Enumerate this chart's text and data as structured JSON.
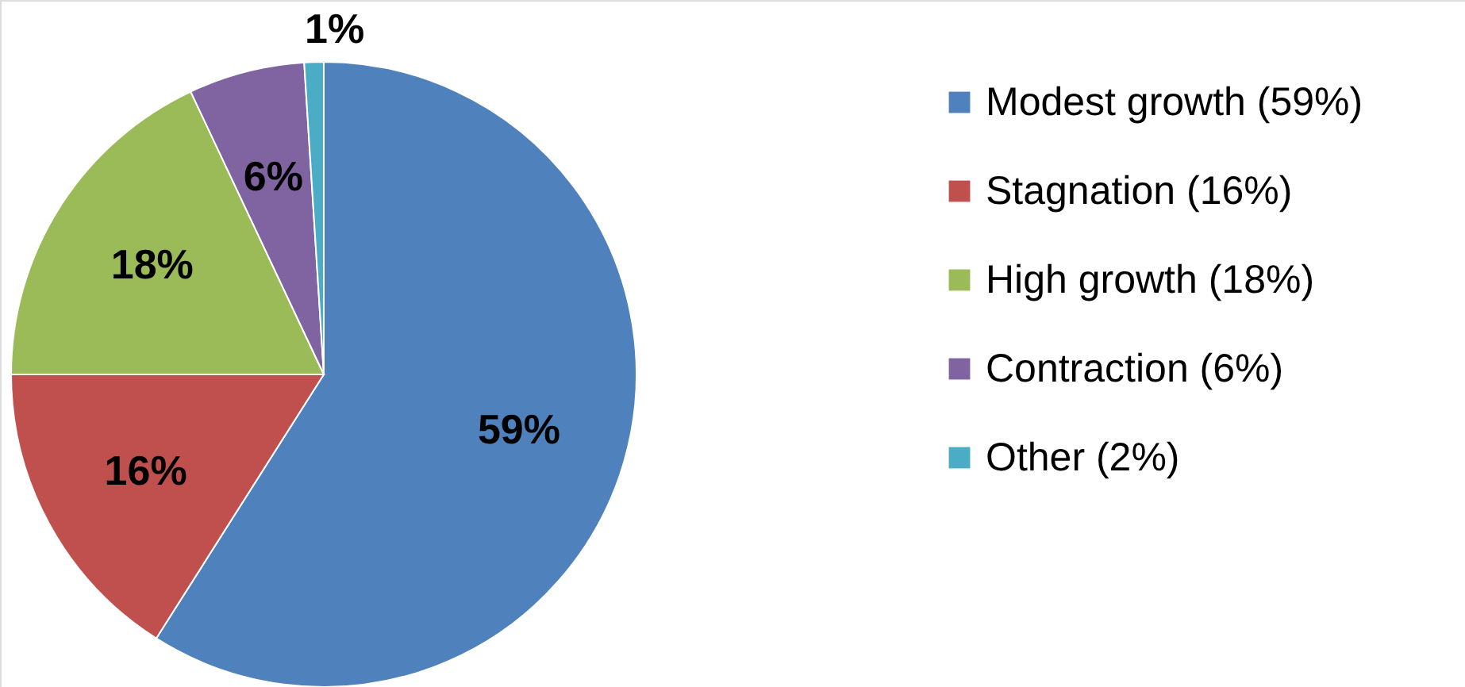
{
  "chart_data": {
    "type": "pie",
    "categories": [
      "Modest growth (59%)",
      "Stagnation (16%)",
      "High growth (18%)",
      "Contraction (6%)",
      "Other (2%)"
    ],
    "values": [
      59,
      16,
      18,
      6,
      1
    ],
    "colors": [
      "#4f81bd",
      "#c0504d",
      "#9bbb59",
      "#8064a2",
      "#4bacc6"
    ],
    "value_labels": [
      "59%",
      "16%",
      "18%",
      "6%",
      "1%"
    ],
    "legend": "right"
  }
}
